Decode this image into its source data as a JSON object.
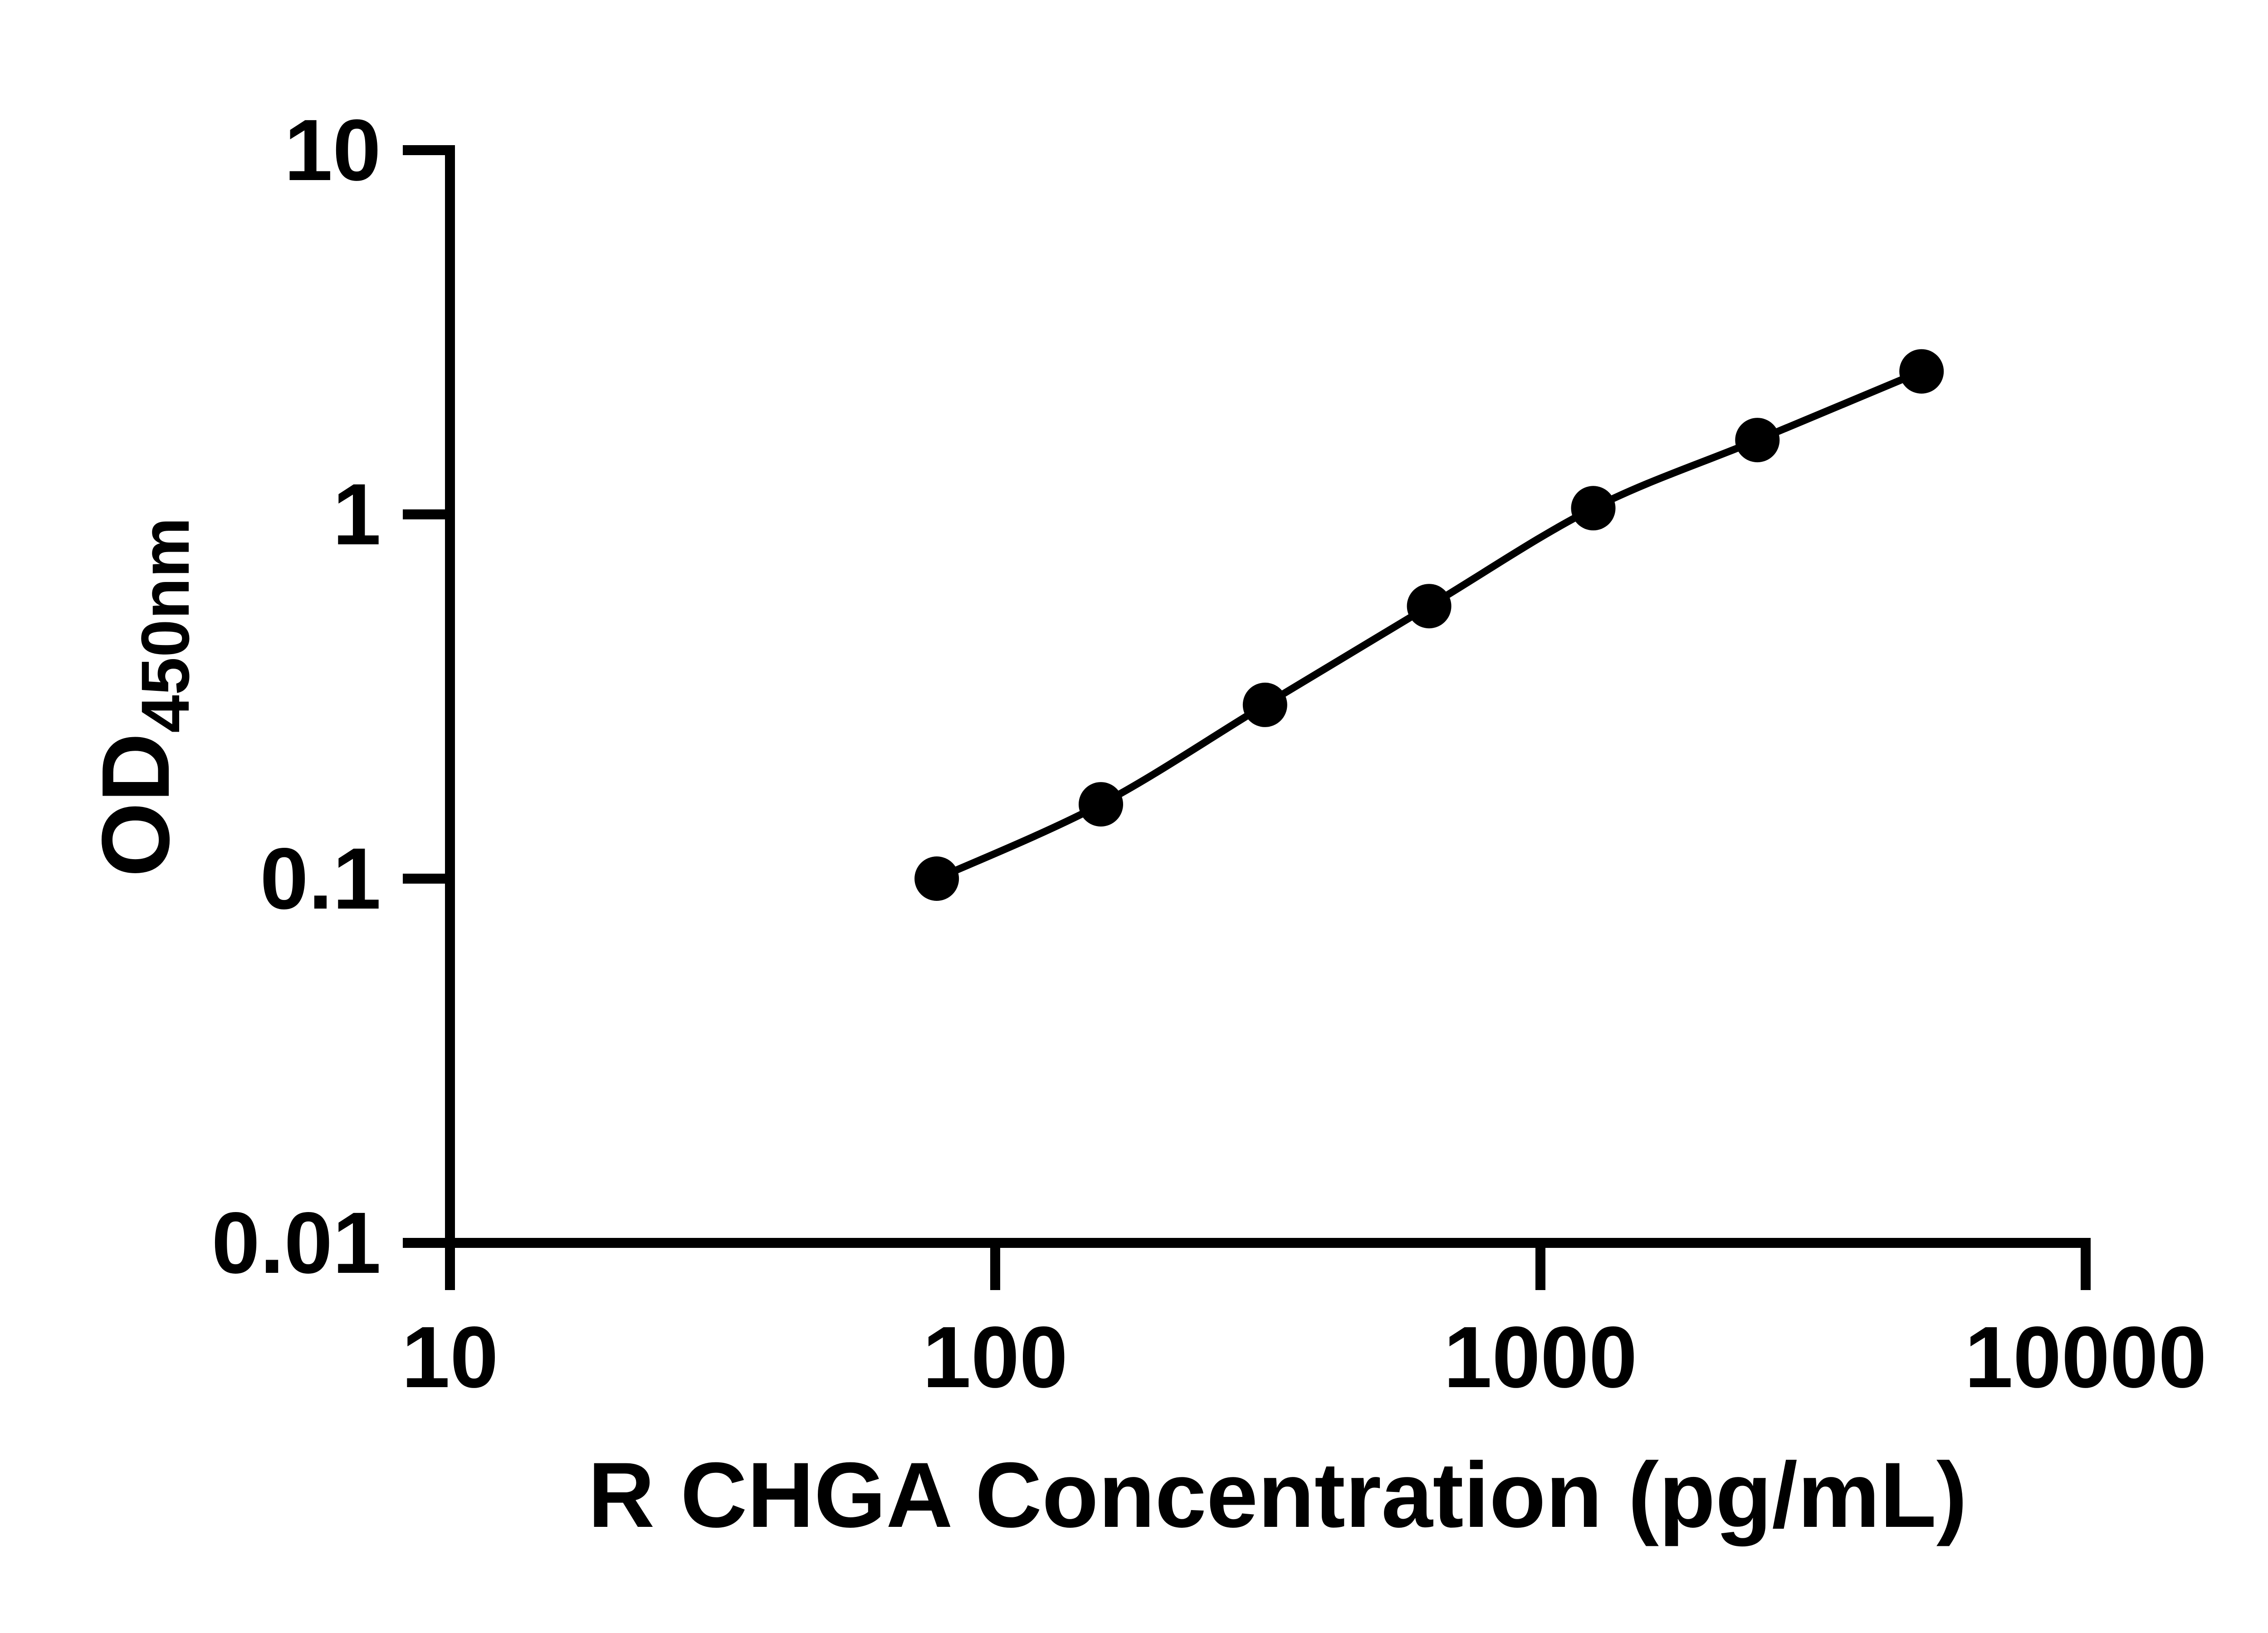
{
  "chart_data": {
    "type": "line",
    "title": "",
    "xlabel": "R CHGA Concentration (pg/mL)",
    "ylabel_main": "OD",
    "ylabel_sub": "450nm",
    "x_scale": "log10",
    "y_scale": "log10",
    "xlim": [
      10,
      10000
    ],
    "ylim": [
      0.01,
      10
    ],
    "grid": false,
    "legend": "none",
    "x_ticks": [
      {
        "label": "10",
        "value": 10
      },
      {
        "label": "100",
        "value": 100
      },
      {
        "label": "1000",
        "value": 1000
      },
      {
        "label": "10000",
        "value": 10000
      }
    ],
    "y_ticks": [
      {
        "label": "10",
        "value": 10
      },
      {
        "label": "1",
        "value": 1
      },
      {
        "label": "0.1",
        "value": 0.1
      },
      {
        "label": "0.01",
        "value": 0.01
      }
    ],
    "points": [
      {
        "x": 78.125,
        "y": 0.1
      },
      {
        "x": 156.25,
        "y": 0.16
      },
      {
        "x": 312.5,
        "y": 0.3
      },
      {
        "x": 625,
        "y": 0.56
      },
      {
        "x": 1250,
        "y": 1.04
      },
      {
        "x": 2500,
        "y": 1.6
      },
      {
        "x": 5000,
        "y": 2.47
      }
    ],
    "marker": "filled-circle",
    "colors": {
      "axis": "#000000",
      "curve": "#000000",
      "marker": "#000000",
      "text": "#000000",
      "background": "#FFFFFF"
    }
  }
}
